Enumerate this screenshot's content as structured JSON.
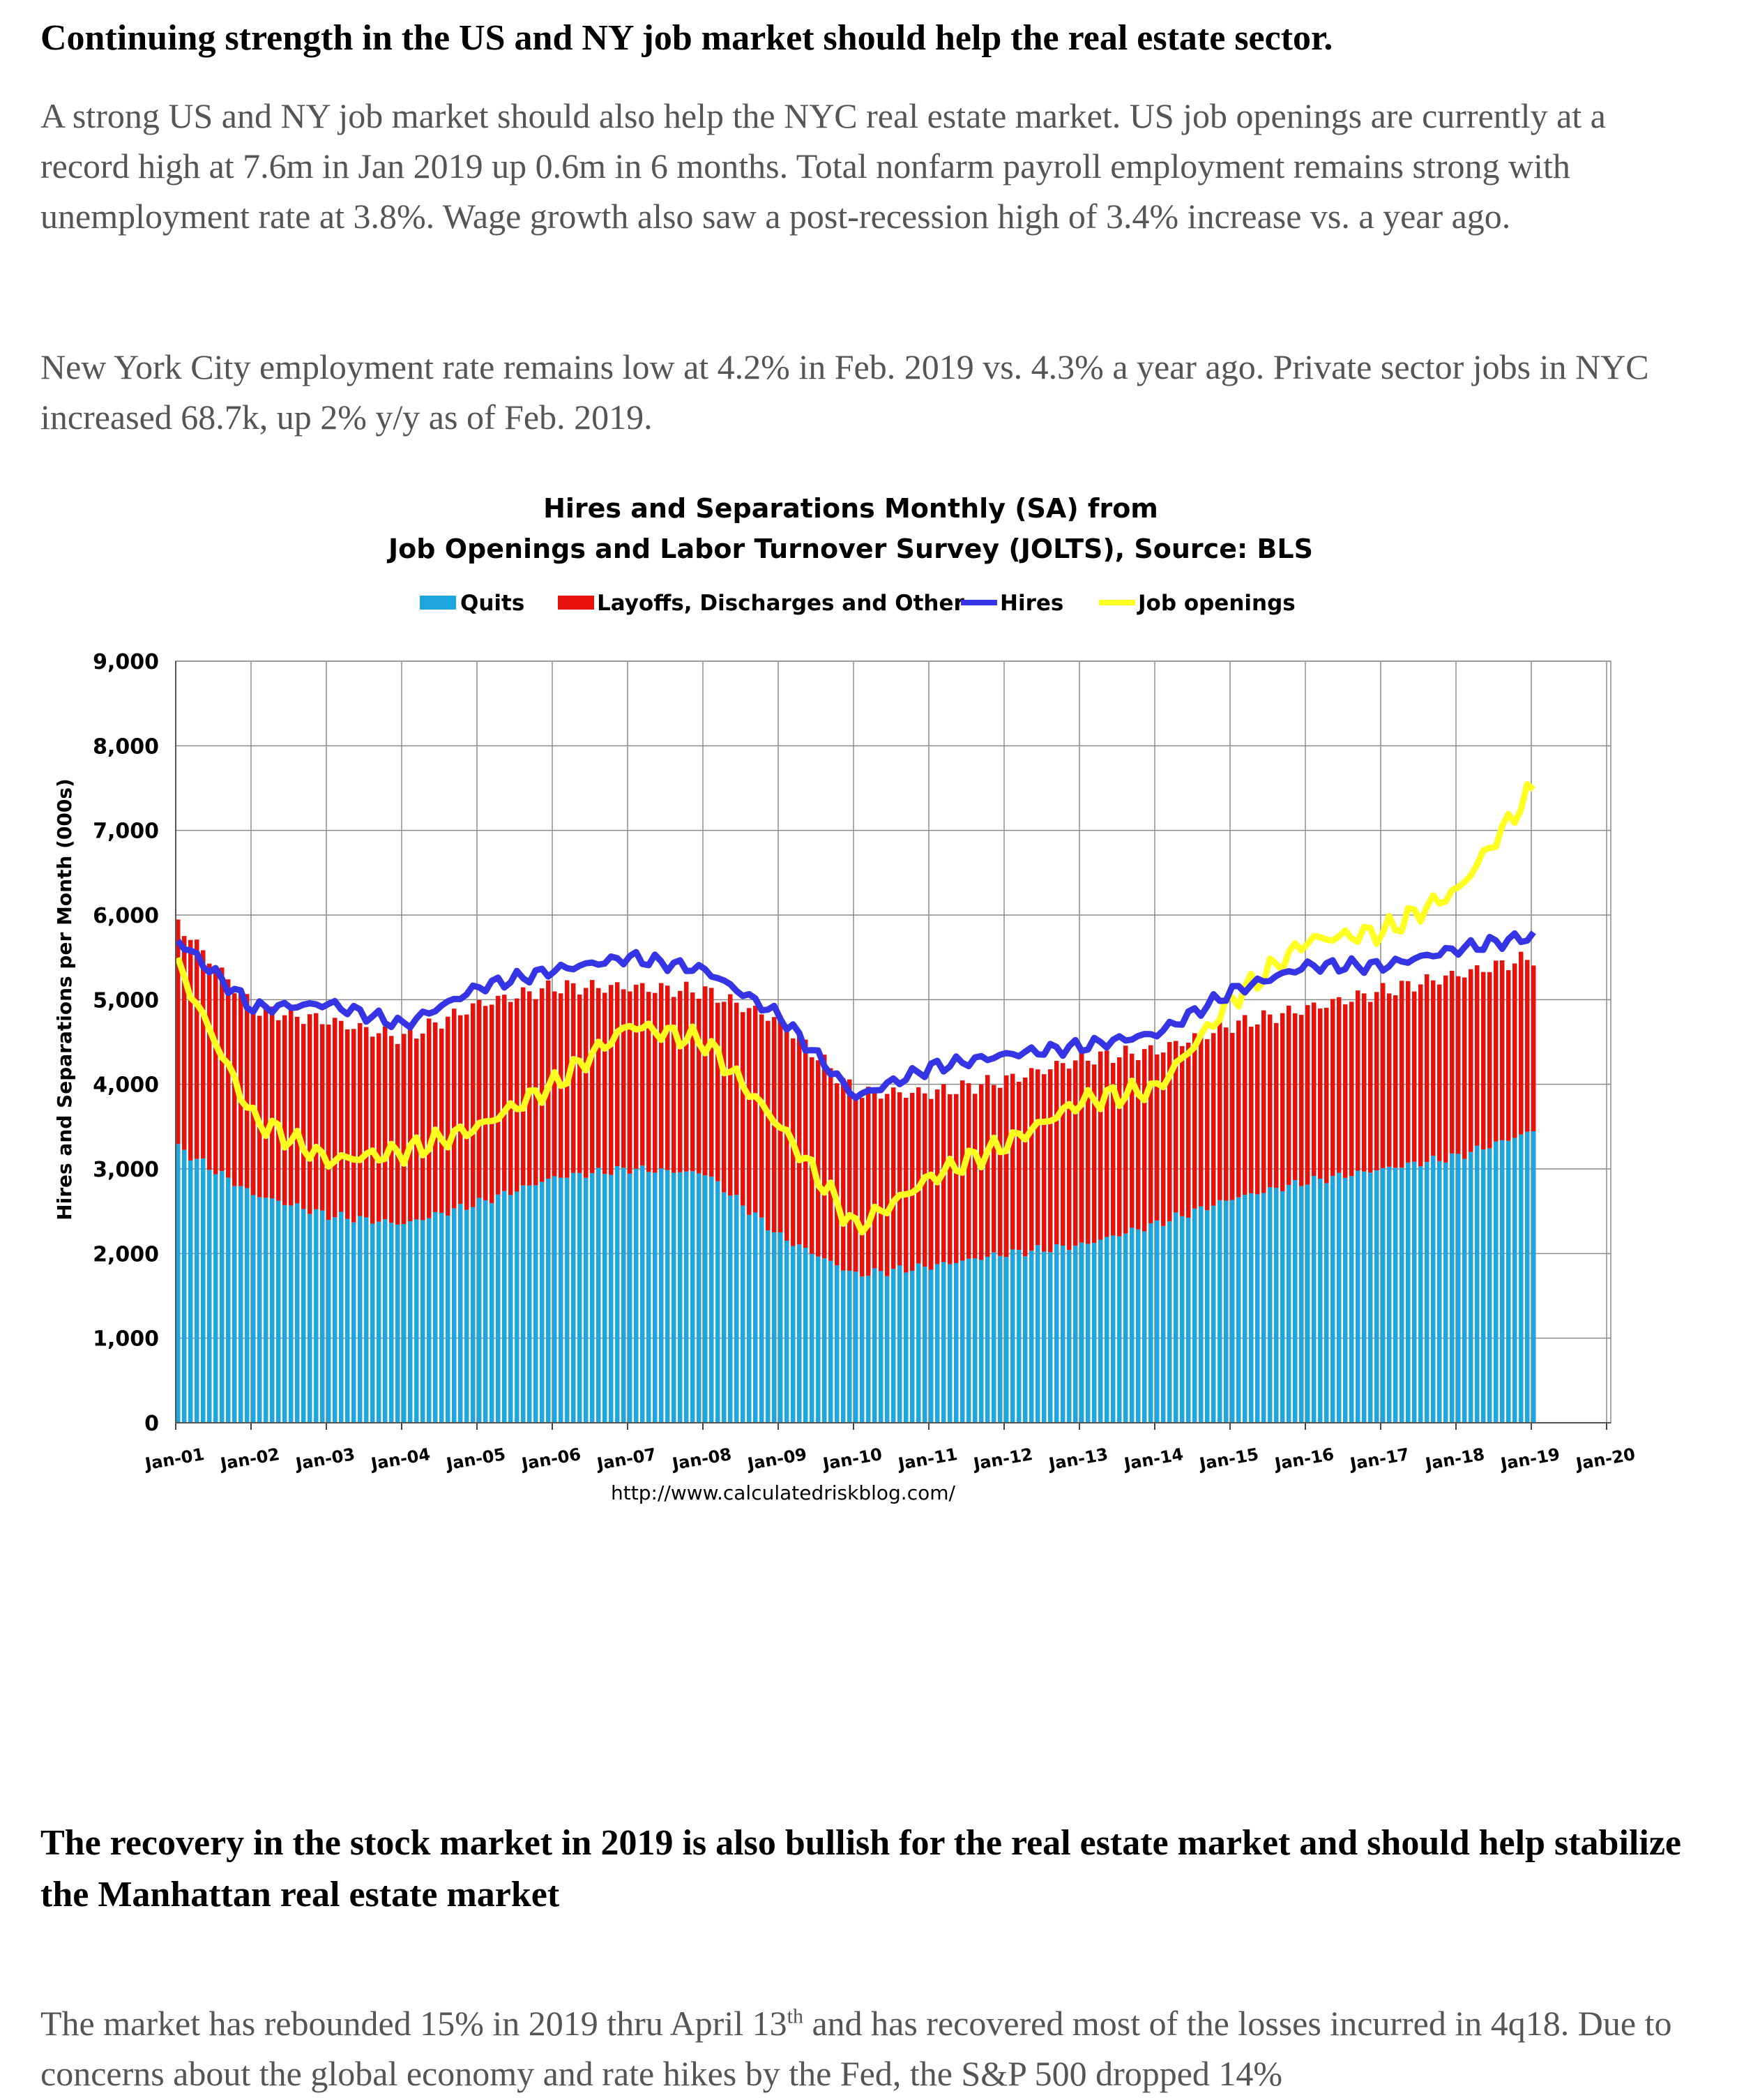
{
  "section1": {
    "heading": "Continuing strength in the US and NY job market should help the real estate sector.",
    "paragraph1": "A strong US and NY job market should also help the NYC real estate market.  US job openings are currently at a record high at 7.6m in Jan 2019 up 0.6m in 6 months.  Total nonfarm payroll employment remains strong with unemployment rate at 3.8%.  Wage growth also saw a post-recession high of 3.4% increase vs. a year ago.",
    "paragraph2": "New York City employment rate remains low at 4.2% in Feb. 2019 vs. 4.3% a year ago. Private sector jobs in NYC increased 68.7k, up 2% y/y as of Feb. 2019."
  },
  "section2": {
    "heading": "The recovery in the stock market in 2019 is also bullish for the real estate market and should help stabilize the Manhattan real estate market",
    "paragraph_before_sup": "The market has rebounded 15% in 2019 thru April 13",
    "sup": "th",
    "paragraph_after_sup": " and has recovered most of the losses incurred in 4q18.  Due to concerns about the global economy and rate hikes by the Fed, the S&P 500 dropped 14%"
  },
  "chart_data": {
    "type": "bar",
    "title_line1": "Hires and Separations Monthly (SA) from",
    "title_line2": "Job Openings and Labor Turnover Survey (JOLTS), Source: BLS",
    "ylabel": "Hires and Separations per Month (000s)",
    "source": "http://www.calculatedriskblog.com/",
    "ylim": [
      0,
      9000
    ],
    "yticks": [
      0,
      1000,
      2000,
      3000,
      4000,
      5000,
      6000,
      7000,
      8000,
      9000
    ],
    "ytick_labels": [
      "0",
      "1,000",
      "2,000",
      "3,000",
      "4,000",
      "5,000",
      "6,000",
      "7,000",
      "8,000",
      "9,000"
    ],
    "xticks": [
      "Jan-01",
      "Jan-02",
      "Jan-03",
      "Jan-04",
      "Jan-05",
      "Jan-06",
      "Jan-07",
      "Jan-08",
      "Jan-09",
      "Jan-10",
      "Jan-11",
      "Jan-12",
      "Jan-13",
      "Jan-14",
      "Jan-15",
      "Jan-16",
      "Jan-17",
      "Jan-18",
      "Jan-19",
      "Jan-20"
    ],
    "legend_position": "top",
    "grid": true,
    "colors": {
      "quits": "#1ea6de",
      "layoffs": "#e8120c",
      "hires": "#3535e6",
      "openings": "#ffff22"
    },
    "legend": [
      "Quits",
      "Layoffs, Discharges and Other",
      "Hires",
      "Job openings"
    ],
    "x_anchors": [
      "Jan-01",
      "Jan-02",
      "Jan-03",
      "Jan-04",
      "Jan-05",
      "Jan-06",
      "Jan-07",
      "Jan-08",
      "Jan-09",
      "Jan-10",
      "Jan-11",
      "Jan-12",
      "Jan-13",
      "Jan-14",
      "Jan-15",
      "Jan-16",
      "Jan-17",
      "Jan-18",
      "Jan-19"
    ],
    "series": [
      {
        "name": "Quits",
        "kind": "stacked-bar",
        "anchor_values": [
          3250,
          2700,
          2450,
          2350,
          2600,
          2900,
          3000,
          2950,
          2200,
          1750,
          1850,
          2000,
          2100,
          2350,
          2650,
          2850,
          3000,
          3150,
          3450
        ]
      },
      {
        "name": "Layoffs, Discharges and Other",
        "kind": "stacked-bar",
        "anchor_values": [
          2650,
          2200,
          2300,
          2200,
          2350,
          2250,
          2150,
          2150,
          2550,
          2150,
          2050,
          2050,
          2200,
          2050,
          2050,
          2050,
          2100,
          2150,
          2050
        ]
      },
      {
        "name": "Hires",
        "kind": "line",
        "anchor_values": [
          5700,
          4900,
          4950,
          4700,
          5150,
          5350,
          5500,
          5350,
          4800,
          3850,
          4200,
          4350,
          4450,
          4600,
          5100,
          5400,
          5400,
          5600,
          5750
        ]
      },
      {
        "name": "Job openings",
        "kind": "line",
        "anchor_values": [
          5400,
          3600,
          3100,
          3200,
          3500,
          4000,
          4700,
          4500,
          3500,
          2300,
          2900,
          3300,
          3800,
          3950,
          5000,
          5700,
          5800,
          6300,
          7500
        ]
      }
    ]
  }
}
